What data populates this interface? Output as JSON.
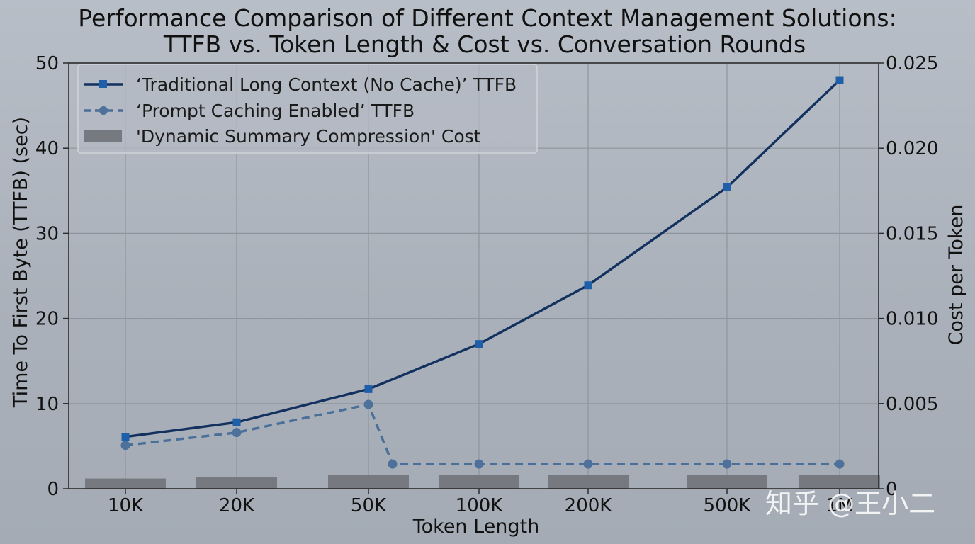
{
  "chart_data": {
    "type": "line",
    "title": [
      "Performance Comparison of Different Context Management Solutions:",
      "TTFB vs. Token Length & Cost vs. Conversation Rounds"
    ],
    "xlabel": "Token Length",
    "ylabel": "Time To First Byte (TTFB) (sec)",
    "ylabel_right": "Cost per Token",
    "categories": [
      "10K",
      "20K",
      "50K",
      "100K",
      "200K",
      "500K",
      "1M"
    ],
    "x_tick_labels": [
      "10K",
      "20K",
      "50K",
      "100K",
      "200K",
      "500K",
      "1M"
    ],
    "y_ticks": [
      0,
      10,
      20,
      30,
      40,
      50
    ],
    "y2_ticks": [
      "0",
      "0.005",
      "0.010",
      "0.015",
      "0.020",
      "0.025"
    ],
    "ylim": [
      0,
      50
    ],
    "y2lim": [
      0,
      0.025
    ],
    "grid": true,
    "legend_position": "top-left",
    "series": [
      {
        "name": "‘Traditional Long Context (No Cache)’ TTFB",
        "kind": "line",
        "axis": "left",
        "color": "#13315f",
        "marker_color": "#1f5ea8",
        "marker": "square",
        "dash": "solid",
        "points": [
          {
            "x": "10K",
            "y": 6.1
          },
          {
            "x": "20K",
            "y": 7.8
          },
          {
            "x": "50K",
            "y": 11.7
          },
          {
            "x": "100K",
            "y": 17.0
          },
          {
            "x": "200K",
            "y": 23.9
          },
          {
            "x": "500K",
            "y": 35.4
          },
          {
            "x": "1M",
            "y": 48.0
          }
        ]
      },
      {
        "name": "‘Prompt Caching Enabled’ TTFB",
        "kind": "line",
        "axis": "left",
        "color": "#4a6f99",
        "marker_color": "#4d719b",
        "marker": "circle",
        "dash": "dashed",
        "points": [
          {
            "x": "10K",
            "y": 5.1
          },
          {
            "x": "20K",
            "y": 6.6
          },
          {
            "x": "50K",
            "y": 9.9
          },
          {
            "x": "50K+",
            "y": 2.9
          },
          {
            "x": "100K",
            "y": 2.9
          },
          {
            "x": "200K",
            "y": 2.9
          },
          {
            "x": "500K",
            "y": 2.9
          },
          {
            "x": "1M",
            "y": 2.9
          }
        ]
      },
      {
        "name": "'Dynamic Summary Compression' Cost",
        "kind": "bar",
        "axis": "right",
        "color": "#767a80",
        "values": [
          0.0006,
          0.0007,
          0.0008,
          0.0008,
          0.0008,
          0.0008,
          0.0008
        ]
      }
    ]
  },
  "watermark": "知乎 @王小二"
}
